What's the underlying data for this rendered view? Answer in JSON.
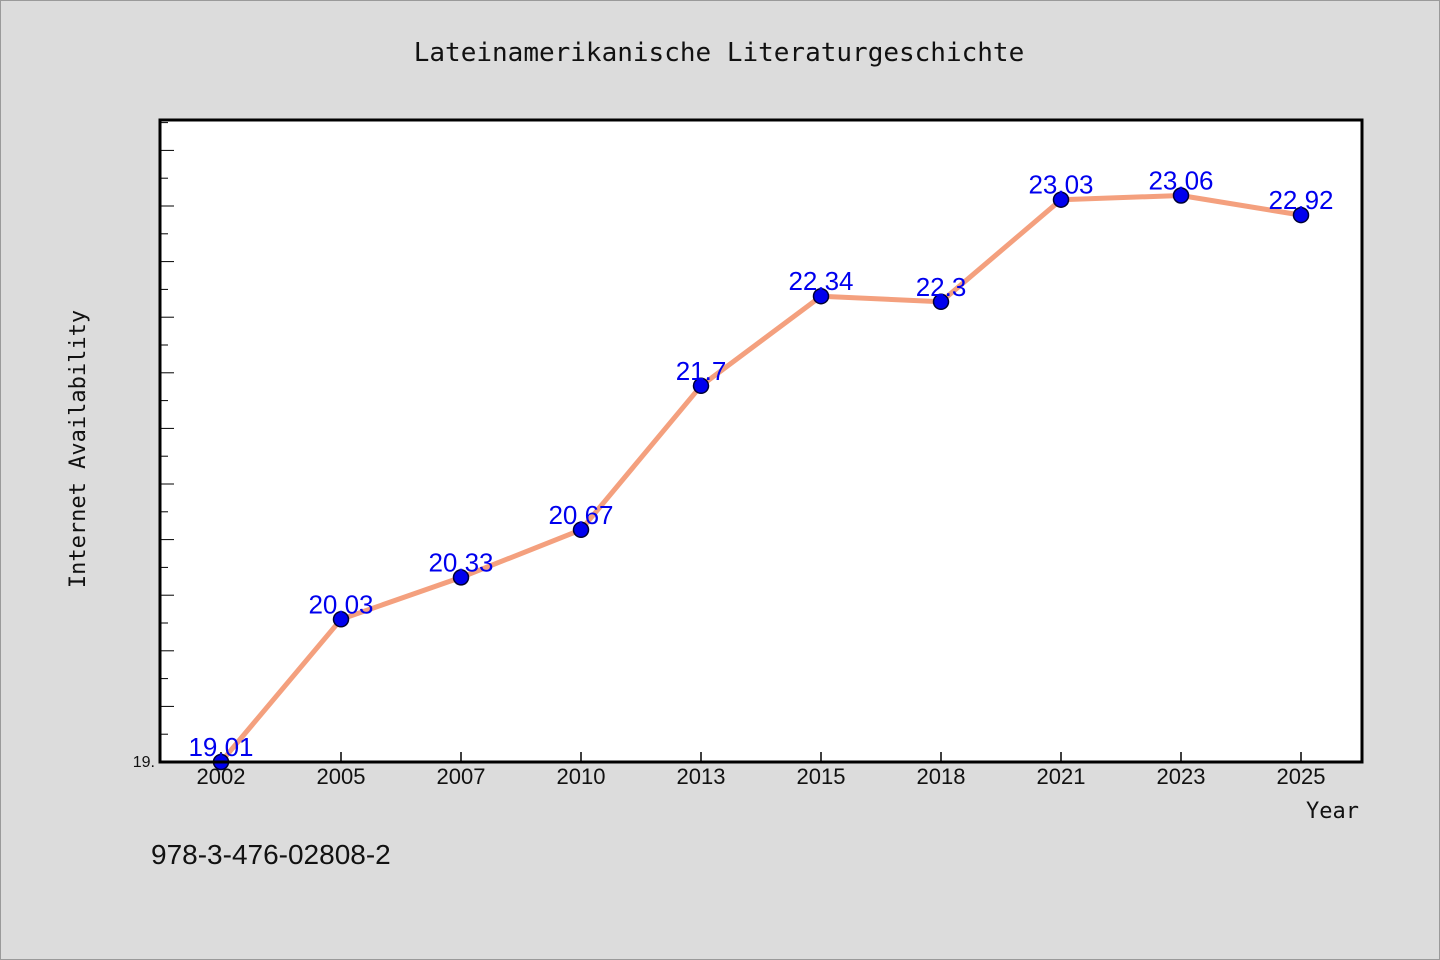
{
  "chart_data": {
    "type": "line",
    "title": "Lateinamerikanische Literaturgeschichte",
    "xlabel": "Year",
    "ylabel": "Internet Availability",
    "categories": [
      "2002",
      "2005",
      "2007",
      "2010",
      "2013",
      "2015",
      "2018",
      "2021",
      "2023",
      "2025"
    ],
    "series": [
      {
        "values": [
          19.01,
          20.03,
          20.33,
          20.67,
          21.7,
          22.34,
          22.3,
          23.03,
          23.06,
          22.92
        ]
      }
    ],
    "data_labels": [
      "19.01",
      "20.03",
      "20.33",
      "20.67",
      "21.7",
      "22.34",
      "22.3",
      "23.03",
      "23.06",
      "22.92"
    ],
    "ylim": [
      19.01,
      23.6
    ],
    "yticks_labeled": [
      "19."
    ],
    "grid": false,
    "legend": "none",
    "colors": {
      "line": "#f4a07e",
      "marker": "#0000ee",
      "label": "#0000ee",
      "background": "#dcdcdc",
      "plot_background": "#ffffff"
    }
  },
  "footnote": "978-3-476-02808-2"
}
